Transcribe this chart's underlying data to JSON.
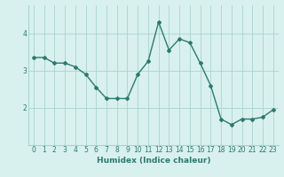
{
  "x": [
    0,
    1,
    2,
    3,
    4,
    5,
    6,
    7,
    8,
    9,
    10,
    11,
    12,
    13,
    14,
    15,
    16,
    17,
    18,
    19,
    20,
    21,
    22,
    23
  ],
  "y": [
    3.35,
    3.35,
    3.2,
    3.2,
    3.1,
    2.9,
    2.55,
    2.25,
    2.25,
    2.25,
    2.9,
    3.25,
    4.3,
    3.55,
    3.85,
    3.75,
    3.2,
    2.6,
    1.7,
    1.55,
    1.7,
    1.7,
    1.75,
    1.95
  ],
  "line_color": "#2d7a6e",
  "marker": "D",
  "marker_size": 2,
  "bg_color": "#d8f0ee",
  "grid_color": "#aad4ce",
  "xlabel": "Humidex (Indice chaleur)",
  "xlim": [
    -0.5,
    23.5
  ],
  "ylim": [
    1.0,
    4.75
  ],
  "yticks": [
    2,
    3,
    4
  ],
  "xtick_labels": [
    "0",
    "1",
    "2",
    "3",
    "4",
    "5",
    "6",
    "7",
    "8",
    "9",
    "10",
    "11",
    "12",
    "13",
    "14",
    "15",
    "16",
    "17",
    "18",
    "19",
    "20",
    "21",
    "22",
    "23"
  ],
  "xlabel_fontsize": 6.5,
  "tick_fontsize": 5.5,
  "linewidth": 1.0
}
